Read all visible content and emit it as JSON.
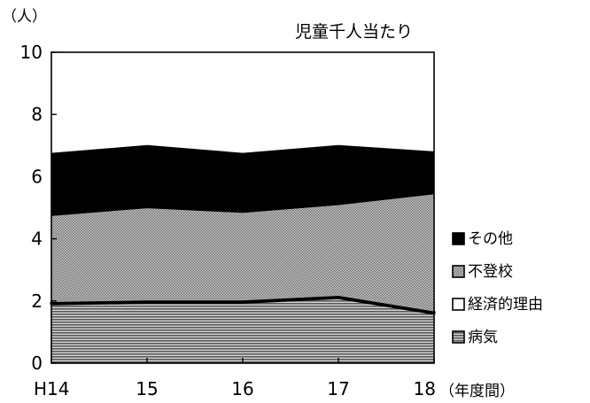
{
  "chart_data": {
    "type": "area",
    "stacked": true,
    "title": "児童千人当たり",
    "ylabel": "（人）",
    "xlabel": "（年度間）",
    "categories": [
      "H14",
      "15",
      "16",
      "17",
      "18"
    ],
    "ylim": [
      0,
      10
    ],
    "yticks": [
      "0",
      "2",
      "4",
      "6",
      "8",
      "10"
    ],
    "grid": false,
    "legend_position": "right",
    "series": [
      {
        "name": "病気",
        "values": [
          1.9,
          1.95,
          1.95,
          2.1,
          1.6
        ],
        "color": "#7f7f7f",
        "pattern": "fine-horizontal-hatch"
      },
      {
        "name": "経済的理由",
        "values": [
          0.05,
          0.05,
          0.05,
          0.05,
          0.05
        ],
        "color": "#ffffff",
        "pattern": "none"
      },
      {
        "name": "不登校",
        "values": [
          2.8,
          3.0,
          2.85,
          2.95,
          3.8
        ],
        "color": "#9a9a9a",
        "pattern": "fine-dot"
      },
      {
        "name": "その他",
        "values": [
          2.0,
          2.0,
          1.9,
          1.9,
          1.35
        ],
        "color": "#000000",
        "pattern": "solid"
      }
    ]
  }
}
